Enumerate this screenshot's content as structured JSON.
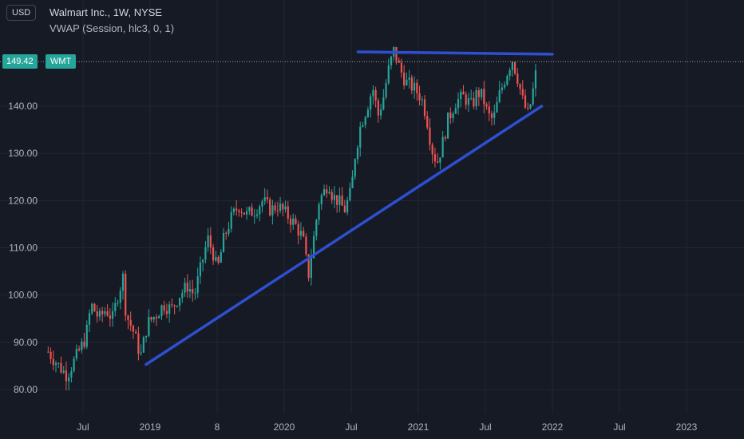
{
  "currency_button": "USD",
  "legend": {
    "title": "Walmart Inc., 1W, NYSE",
    "indicator": "VWAP (Session, hlc3, 0, 1)"
  },
  "last_price": {
    "value": "149.42",
    "symbol": "WMT",
    "color": "#26a69a"
  },
  "colors": {
    "up": "#26a69a",
    "down": "#ef5350",
    "trendline": "#2f4fd0",
    "background": "#161a25",
    "grid": "#232733"
  },
  "chart_data": {
    "type": "candlestick",
    "title": "Walmart Inc., 1W, NYSE",
    "ylim": [
      78,
      155
    ],
    "y_ticks": [
      "80.00",
      "90.00",
      "100.00",
      "110.00",
      "120.00",
      "130.00",
      "140.00"
    ],
    "x_ticks": [
      {
        "label": "Jul",
        "t": 2018.5
      },
      {
        "label": "2019",
        "t": 2019.0
      },
      {
        "label": "8",
        "t": 2019.5
      },
      {
        "label": "2020",
        "t": 2020.0
      },
      {
        "label": "Jul",
        "t": 2020.5
      },
      {
        "label": "2021",
        "t": 2021.0
      },
      {
        "label": "Jul",
        "t": 2021.5
      },
      {
        "label": "2022",
        "t": 2022.0
      },
      {
        "label": "Jul",
        "t": 2022.5
      },
      {
        "label": "2023",
        "t": 2023.0
      }
    ],
    "xlim": [
      2018.23,
      2023.44
    ],
    "price_path": [
      [
        2018.24,
        88
      ],
      [
        2018.32,
        85
      ],
      [
        2018.38,
        83
      ],
      [
        2018.45,
        87
      ],
      [
        2018.52,
        91
      ],
      [
        2018.56,
        98
      ],
      [
        2018.62,
        95
      ],
      [
        2018.67,
        97
      ],
      [
        2018.72,
        95
      ],
      [
        2018.76,
        100
      ],
      [
        2018.8,
        104
      ],
      [
        2018.82,
        96
      ],
      [
        2018.88,
        92
      ],
      [
        2018.93,
        87
      ],
      [
        2018.98,
        94
      ],
      [
        2019.05,
        96
      ],
      [
        2019.1,
        98
      ],
      [
        2019.16,
        97
      ],
      [
        2019.22,
        100
      ],
      [
        2019.28,
        102
      ],
      [
        2019.33,
        100
      ],
      [
        2019.38,
        106
      ],
      [
        2019.43,
        112
      ],
      [
        2019.48,
        108
      ],
      [
        2019.5,
        105
      ],
      [
        2019.55,
        112
      ],
      [
        2019.6,
        116
      ],
      [
        2019.66,
        119
      ],
      [
        2019.72,
        117
      ],
      [
        2019.78,
        118
      ],
      [
        2019.84,
        120
      ],
      [
        2019.9,
        118
      ],
      [
        2019.95,
        119
      ],
      [
        2020.02,
        117
      ],
      [
        2020.08,
        115
      ],
      [
        2020.14,
        112
      ],
      [
        2020.18,
        104
      ],
      [
        2020.22,
        112
      ],
      [
        2020.26,
        120
      ],
      [
        2020.3,
        122
      ],
      [
        2020.33,
        124
      ],
      [
        2020.36,
        121
      ],
      [
        2020.4,
        120
      ],
      [
        2020.45,
        118
      ],
      [
        2020.5,
        122
      ],
      [
        2020.53,
        130
      ],
      [
        2020.57,
        136
      ],
      [
        2020.62,
        140
      ],
      [
        2020.66,
        144
      ],
      [
        2020.7,
        138
      ],
      [
        2020.74,
        142
      ],
      [
        2020.78,
        148
      ],
      [
        2020.82,
        152
      ],
      [
        2020.86,
        148
      ],
      [
        2020.91,
        145
      ],
      [
        2020.96,
        144
      ],
      [
        2021.02,
        142
      ],
      [
        2021.06,
        138
      ],
      [
        2021.1,
        131
      ],
      [
        2021.14,
        128
      ],
      [
        2021.18,
        132
      ],
      [
        2021.22,
        137
      ],
      [
        2021.28,
        141
      ],
      [
        2021.34,
        142
      ],
      [
        2021.4,
        140
      ],
      [
        2021.44,
        143
      ],
      [
        2021.48,
        142
      ],
      [
        2021.52,
        138
      ],
      [
        2021.56,
        137
      ],
      [
        2021.6,
        142
      ],
      [
        2021.66,
        147
      ],
      [
        2021.7,
        150
      ],
      [
        2021.74,
        146
      ],
      [
        2021.78,
        141
      ],
      [
        2021.82,
        138
      ],
      [
        2021.86,
        144
      ],
      [
        2021.89,
        149.42
      ]
    ],
    "trendlines": [
      {
        "name": "support",
        "points": [
          [
            2018.97,
            85.3
          ],
          [
            2021.92,
            140.0
          ]
        ]
      },
      {
        "name": "resistance",
        "points": [
          [
            2020.55,
            151.5
          ],
          [
            2022.0,
            151.0
          ]
        ]
      }
    ],
    "last_price_line": 149.42
  }
}
